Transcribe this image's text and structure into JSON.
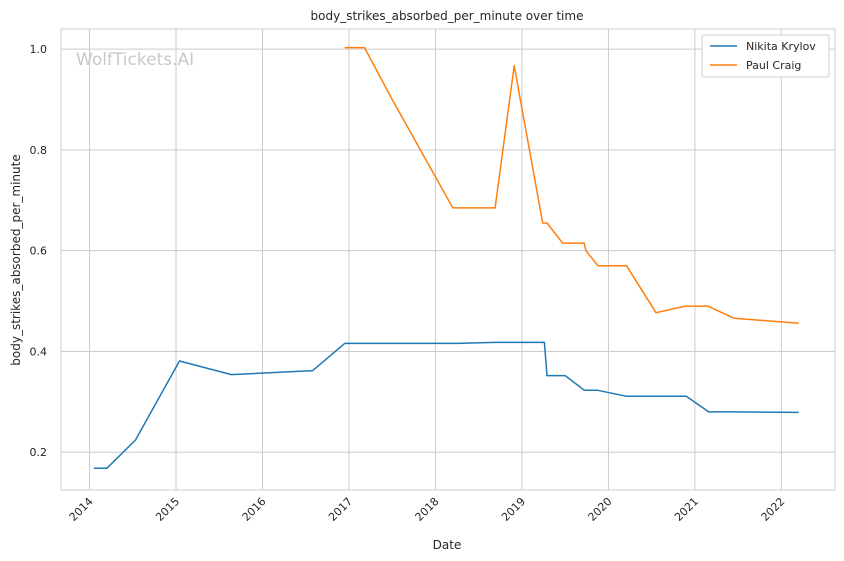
{
  "chart_data": {
    "type": "line",
    "title": "body_strikes_absorbed_per_minute over time",
    "xlabel": "Date",
    "ylabel": "body_strikes_absorbed_per_minute",
    "watermark": "WolfTickets.AI",
    "xlim": [
      2013.67,
      2022.62
    ],
    "ylim": [
      0.125,
      1.04
    ],
    "x_ticks": [
      2014,
      2015,
      2016,
      2017,
      2018,
      2019,
      2020,
      2021,
      2022
    ],
    "x_tick_labels": [
      "2014",
      "2015",
      "2016",
      "2017",
      "2018",
      "2019",
      "2020",
      "2021",
      "2022"
    ],
    "y_ticks": [
      0.2,
      0.4,
      0.6,
      0.8,
      1.0
    ],
    "y_tick_labels": [
      "0.2",
      "0.4",
      "0.6",
      "0.8",
      "1.0"
    ],
    "grid": true,
    "legend_position": "top-right",
    "series": [
      {
        "name": "Nikita Krylov",
        "color": "#1f77b4",
        "x": [
          2014.05,
          2014.2,
          2014.53,
          2015.04,
          2015.64,
          2016.58,
          2016.95,
          2017.5,
          2018.24,
          2018.69,
          2019.26,
          2019.29,
          2019.5,
          2019.72,
          2019.87,
          2020.21,
          2020.55,
          2020.9,
          2021.16,
          2021.46,
          2022.2
        ],
        "y": [
          0.168,
          0.168,
          0.224,
          0.381,
          0.354,
          0.362,
          0.416,
          0.416,
          0.416,
          0.418,
          0.418,
          0.352,
          0.352,
          0.323,
          0.323,
          0.311,
          0.311,
          0.311,
          0.28,
          0.28,
          0.279
        ]
      },
      {
        "name": "Paul Craig",
        "color": "#ff7f0e",
        "x": [
          2016.95,
          2017.18,
          2017.5,
          2018.2,
          2018.69,
          2018.91,
          2019.24,
          2019.29,
          2019.47,
          2019.72,
          2019.74,
          2019.88,
          2020.21,
          2020.55,
          2020.89,
          2021.15,
          2021.45,
          2022.2
        ],
        "y": [
          1.003,
          1.003,
          0.9,
          0.685,
          0.685,
          0.967,
          0.655,
          0.655,
          0.615,
          0.615,
          0.6,
          0.57,
          0.57,
          0.477,
          0.49,
          0.49,
          0.466,
          0.456
        ]
      }
    ]
  }
}
